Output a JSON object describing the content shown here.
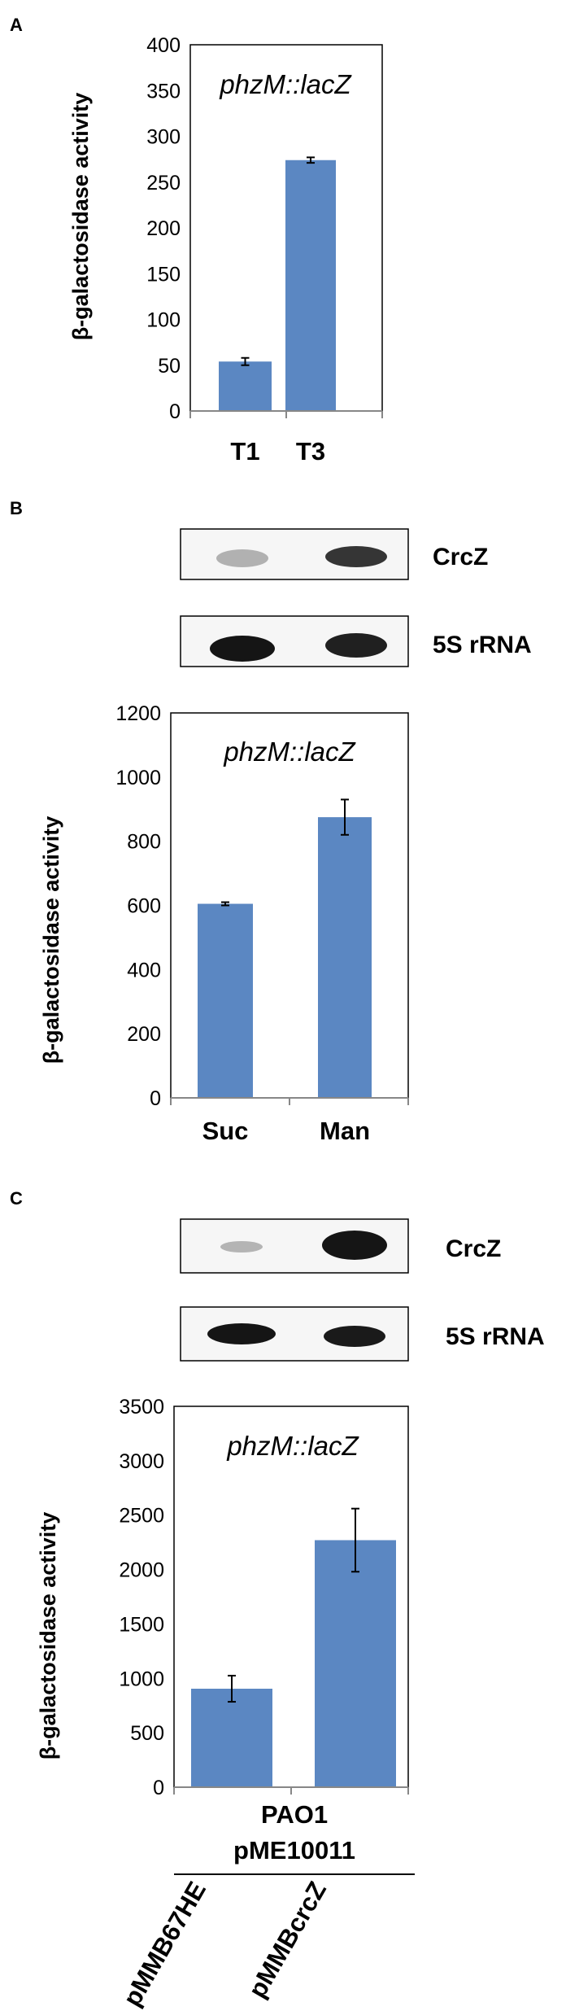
{
  "panels": {
    "A": {
      "letter": "A"
    },
    "B": {
      "letter": "B"
    },
    "C": {
      "letter": "C"
    }
  },
  "blots": {
    "B": {
      "row1_label": "CrcZ",
      "row2_label": "5S rRNA"
    },
    "C": {
      "row1_label": "CrcZ",
      "row2_label": "5S rRNA"
    }
  },
  "panel_c_extra": {
    "strain": "PAO1",
    "plasmid_group": "pME10011",
    "rotated_labels": [
      "pMMB67HE",
      "pMMBcrcZ"
    ]
  },
  "colors": {
    "bar": "#5b87c2",
    "frame": "#000000",
    "axis": "#878787"
  },
  "chart_data": [
    {
      "type": "bar",
      "title": "",
      "annotation": "phzM::lacZ",
      "ylabel": "β-galactosidase activity",
      "xlabel": "",
      "categories": [
        "T1",
        "T3"
      ],
      "values": [
        54,
        274
      ],
      "errors": [
        4,
        3
      ],
      "ylim": [
        0,
        400
      ],
      "yticks": [
        "0",
        "50",
        "100",
        "150",
        "200",
        "250",
        "300",
        "350",
        "400"
      ],
      "grid": false,
      "legend": "none"
    },
    {
      "type": "bar",
      "title": "",
      "annotation": "phzM::lacZ",
      "ylabel": "β-galactosidase activity",
      "xlabel": "",
      "categories": [
        "Suc",
        "Man"
      ],
      "values": [
        605,
        875
      ],
      "errors": [
        5,
        55
      ],
      "ylim": [
        0,
        1200
      ],
      "yticks": [
        "0",
        "200",
        "400",
        "600",
        "800",
        "1000",
        "1200"
      ],
      "grid": false,
      "legend": "none"
    },
    {
      "type": "bar",
      "title": "",
      "annotation": "phzM::lacZ",
      "ylabel": "β-galactosidase activity",
      "xlabel": "",
      "categories": [
        "pMMB67HE",
        "pMMBcrcZ"
      ],
      "values": [
        905,
        2270
      ],
      "errors": [
        120,
        290
      ],
      "ylim": [
        0,
        3500
      ],
      "yticks": [
        "0",
        "500",
        "1000",
        "1500",
        "2000",
        "2500",
        "3000",
        "3500"
      ],
      "grid": false,
      "legend": "none"
    }
  ]
}
